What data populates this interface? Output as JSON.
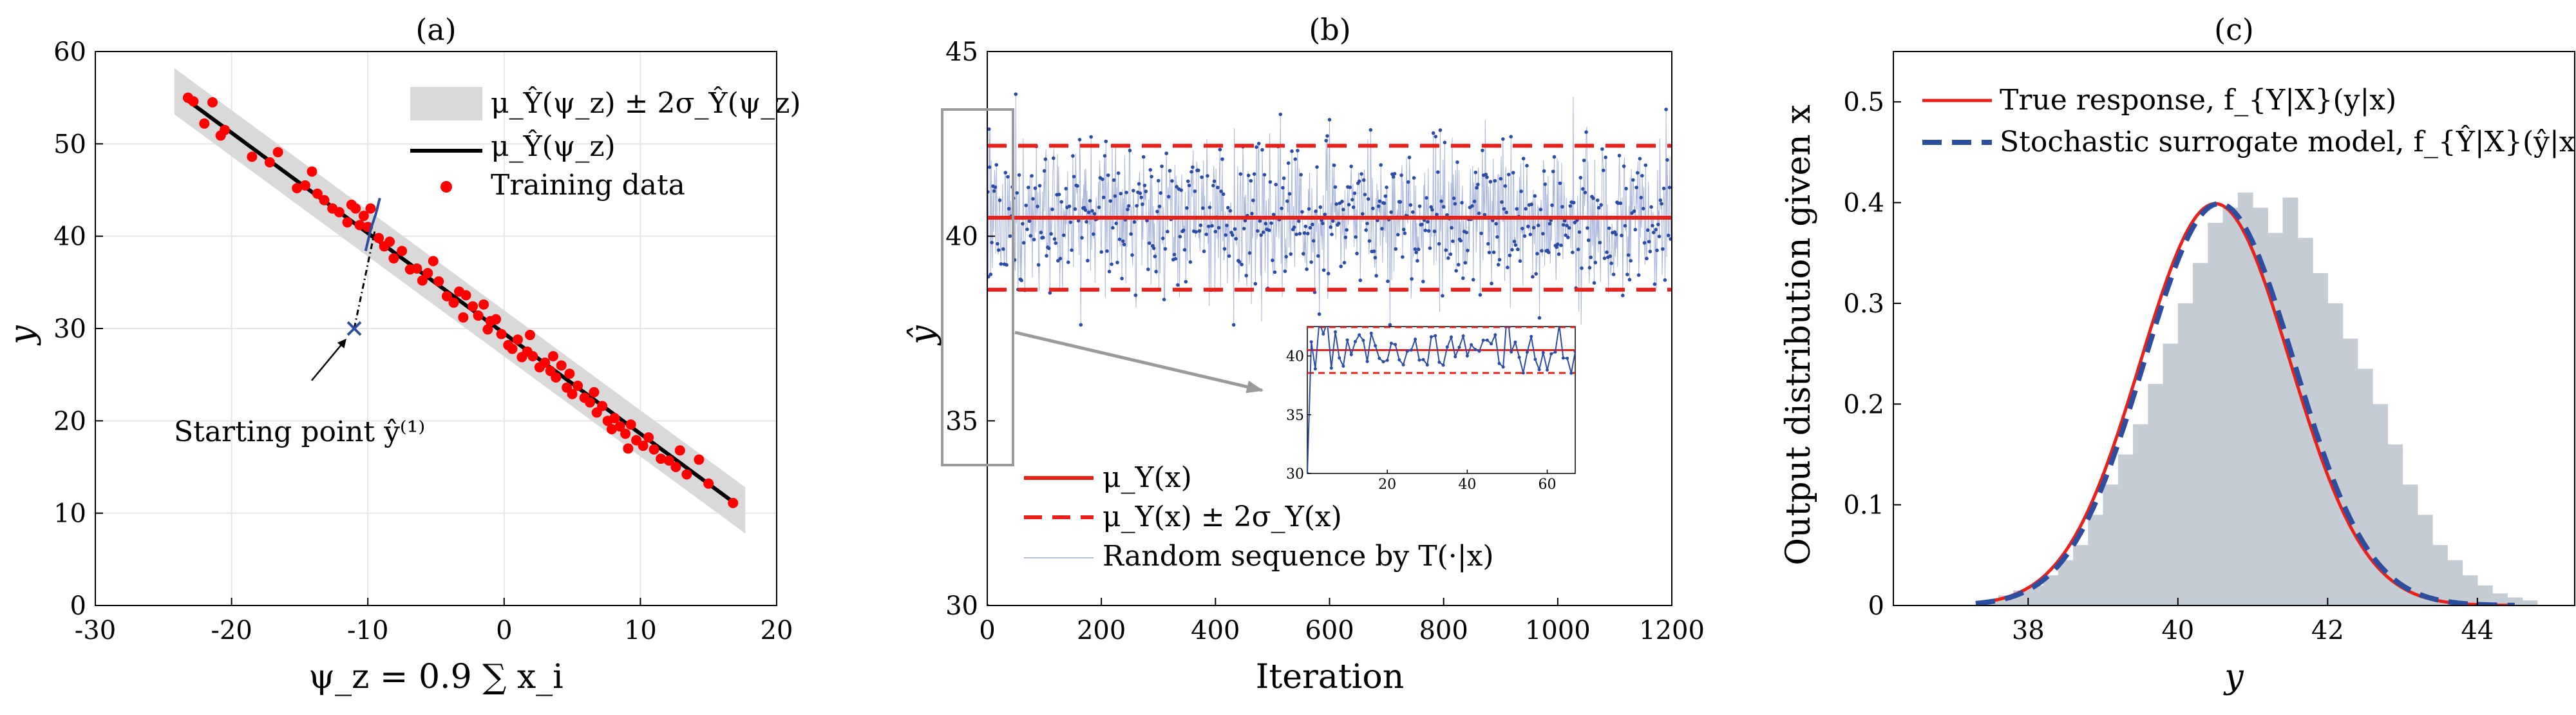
{
  "colors": {
    "band": "#d9d9d9",
    "mean_line": "#000000",
    "training": "#ff0000",
    "true_red": "#e8221a",
    "surrogate_blue": "#2d4e9e",
    "sequence_blue": "#2c4ca6",
    "hist_fill": "#c6ccd4",
    "grid": "#e6e6e6",
    "inset_frame": "#999999"
  },
  "chart_data": [
    {
      "id": "a",
      "type": "scatter",
      "title": "(a)",
      "xlabel": "ψ_z = 0.9 ∑ x_i",
      "ylabel": "y",
      "xlim": [
        -30,
        20
      ],
      "ylim": [
        0,
        60
      ],
      "xticks": [
        "-30",
        "-20",
        "-10",
        "0",
        "10",
        "20"
      ],
      "yticks": [
        "0",
        "10",
        "20",
        "30",
        "40",
        "50",
        "60"
      ],
      "grid": true,
      "mean_line": {
        "x": [
          -23.5,
          17
        ],
        "y": [
          55,
          11
        ]
      },
      "band_halfwidth": 2.5,
      "legend": [
        "μ_Ŷ(ψ_z) ± 2σ_Ŷ(ψ_z)",
        "μ_Ŷ(ψ_z)",
        "Training data"
      ],
      "legend_position": "top-right",
      "start_point": {
        "x": -11,
        "y": 30
      },
      "start_segment_end": {
        "x": -9.5,
        "y": 40.5
      },
      "annotation": "Starting point ŷ⁽¹⁾",
      "annotation_anchor": {
        "x": -14.5,
        "y": 22
      },
      "training_points": [
        [
          -23.2,
          55.0
        ],
        [
          -22.8,
          54.6
        ],
        [
          -22.0,
          52.2
        ],
        [
          -21.4,
          54.5
        ],
        [
          -20.5,
          51.5
        ],
        [
          -18.5,
          48.6
        ],
        [
          -17.2,
          48.0
        ],
        [
          -16.6,
          49.1
        ],
        [
          -15.2,
          45.2
        ],
        [
          -14.6,
          45.5
        ],
        [
          -14.1,
          47.0
        ],
        [
          -13.2,
          43.9
        ],
        [
          -12.6,
          43.0
        ],
        [
          -12.1,
          42.6
        ],
        [
          -11.5,
          41.5
        ],
        [
          -11.2,
          43.4
        ],
        [
          -10.9,
          43.0
        ],
        [
          -10.6,
          41.2
        ],
        [
          -10.3,
          42.2
        ],
        [
          -10.0,
          41.0
        ],
        [
          -9.8,
          43.0
        ],
        [
          -9.2,
          39.8
        ],
        [
          -8.8,
          38.9
        ],
        [
          -8.4,
          39.4
        ],
        [
          -7.5,
          38.4
        ],
        [
          -6.9,
          36.4
        ],
        [
          -6.4,
          36.5
        ],
        [
          -5.6,
          36.0
        ],
        [
          -5.2,
          37.3
        ],
        [
          -4.8,
          35.1
        ],
        [
          -4.2,
          33.5
        ],
        [
          -3.7,
          32.8
        ],
        [
          -3.3,
          34.0
        ],
        [
          -2.8,
          33.6
        ],
        [
          -2.3,
          32.4
        ],
        [
          -1.9,
          31.4
        ],
        [
          -1.5,
          32.6
        ],
        [
          -1.0,
          30.8
        ],
        [
          -0.6,
          31.0
        ],
        [
          -0.2,
          29.4
        ],
        [
          0.3,
          28.2
        ],
        [
          0.6,
          27.8
        ],
        [
          1.0,
          28.8
        ],
        [
          1.3,
          26.9
        ],
        [
          1.7,
          27.5
        ],
        [
          2.1,
          27.0
        ],
        [
          2.6,
          25.8
        ],
        [
          3.0,
          26.3
        ],
        [
          3.4,
          25.4
        ],
        [
          3.8,
          24.7
        ],
        [
          4.2,
          26.0
        ],
        [
          4.6,
          23.6
        ],
        [
          5.0,
          22.9
        ],
        [
          5.4,
          23.8
        ],
        [
          5.9,
          22.5
        ],
        [
          6.3,
          22.0
        ],
        [
          6.8,
          20.9
        ],
        [
          7.2,
          21.6
        ],
        [
          7.6,
          20.0
        ],
        [
          8.1,
          20.3
        ],
        [
          8.5,
          19.4
        ],
        [
          8.9,
          18.6
        ],
        [
          9.3,
          19.6
        ],
        [
          9.7,
          17.9
        ],
        [
          10.2,
          17.3
        ],
        [
          10.6,
          18.2
        ],
        [
          11.0,
          16.9
        ],
        [
          11.5,
          15.9
        ],
        [
          12.1,
          15.7
        ],
        [
          12.6,
          15.0
        ],
        [
          13.4,
          14.2
        ],
        [
          14.3,
          15.8
        ],
        [
          15.0,
          13.2
        ],
        [
          16.8,
          11.1
        ],
        [
          -20.8,
          50.9
        ],
        [
          -13.7,
          44.6
        ],
        [
          -6.0,
          35.2
        ],
        [
          1.9,
          29.3
        ],
        [
          6.6,
          23.1
        ],
        [
          9.1,
          17.0
        ],
        [
          -3.0,
          31.2
        ],
        [
          4.8,
          25.1
        ],
        [
          -8.1,
          37.6
        ],
        [
          12.9,
          16.8
        ],
        [
          -1.2,
          29.9
        ],
        [
          3.6,
          27.0
        ],
        [
          7.9,
          19.1
        ]
      ]
    },
    {
      "id": "b",
      "type": "line",
      "title": "(b)",
      "xlabel": "Iteration",
      "ylabel": "ŷ",
      "xlim": [
        0,
        1200
      ],
      "ylim": [
        30,
        45
      ],
      "xticks": [
        "0",
        "200",
        "400",
        "600",
        "800",
        "1000",
        "1200"
      ],
      "yticks": [
        "30",
        "35",
        "40",
        "45"
      ],
      "grid": false,
      "mean": 40.5,
      "band": [
        38.55,
        42.45
      ],
      "sequence_start": 30,
      "sequence_length": 1200,
      "sequence_std": 0.97,
      "legend": [
        "μ_Y(x)",
        "μ_Y(x) ± 2σ_Y(x)",
        "Random sequence by T(·|x)"
      ],
      "legend_position": "bottom-left",
      "inset": {
        "xlim": [
          0,
          67
        ],
        "ylim": [
          30,
          42.5
        ],
        "xticks": [
          "20",
          "40",
          "60"
        ],
        "yticks": [
          "30",
          "35",
          "40"
        ]
      }
    },
    {
      "id": "c",
      "type": "histogram",
      "title": "(c)",
      "xlabel": "y",
      "ylabel": "Output distribution given x",
      "xlim": [
        36.2,
        45.3
      ],
      "ylim": [
        0,
        0.55
      ],
      "xticks": [
        "38",
        "40",
        "42",
        "44"
      ],
      "yticks": [
        "0",
        "0.1",
        "0.2",
        "0.3",
        "0.4",
        "0.5"
      ],
      "grid": false,
      "bin_start": 37.4,
      "bin_width": 0.2,
      "bin_heights": [
        0.005,
        0.01,
        0.015,
        0.02,
        0.03,
        0.045,
        0.06,
        0.09,
        0.12,
        0.15,
        0.18,
        0.22,
        0.26,
        0.3,
        0.34,
        0.38,
        0.395,
        0.41,
        0.395,
        0.37,
        0.405,
        0.365,
        0.33,
        0.3,
        0.265,
        0.235,
        0.2,
        0.16,
        0.12,
        0.09,
        0.06,
        0.045,
        0.03,
        0.02,
        0.012,
        0.008,
        0.005
      ],
      "true_mean": 40.5,
      "true_std": 1.0,
      "surrogate_mean": 40.55,
      "surrogate_std": 1.0,
      "curve_range": [
        37.3,
        44.5
      ],
      "legend": [
        "True response, f_{Y|X}(y|x)",
        "Stochastic surrogate model, f_{Ŷ|X}(ŷ|x)"
      ],
      "legend_position": "top-left"
    }
  ],
  "ann": {
    "title_a": "(a)",
    "title_b": "(b)",
    "title_c": "(c)",
    "xlab_b": "Iteration"
  }
}
